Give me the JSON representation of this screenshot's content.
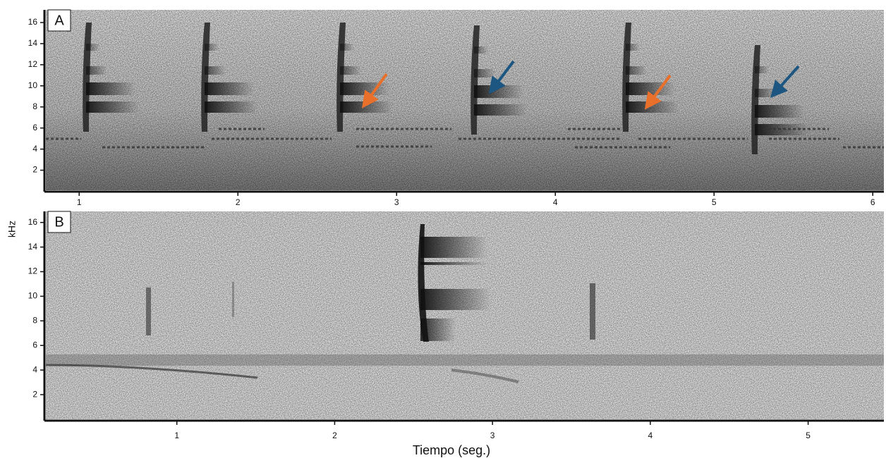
{
  "chart_data": [
    {
      "type": "spectrogram",
      "panel": "A",
      "xlim": [
        0.79,
        6.07
      ],
      "xticks": [
        1,
        2,
        3,
        4,
        5,
        6
      ],
      "ylim": [
        0.1,
        17.2
      ],
      "yticks": [
        2,
        4,
        6,
        8,
        10,
        12,
        14,
        16
      ]
    },
    {
      "type": "spectrogram",
      "panel": "B",
      "xlim": [
        0.17,
        5.48
      ],
      "xticks": [
        1,
        2,
        3,
        4,
        5
      ],
      "ylim": [
        0,
        16.9
      ],
      "yticks": [
        2,
        4,
        6,
        8,
        10,
        12,
        14,
        16
      ],
      "ylabel": "kHz",
      "xlabel": "Tiempo (seg.)"
    }
  ]
}
